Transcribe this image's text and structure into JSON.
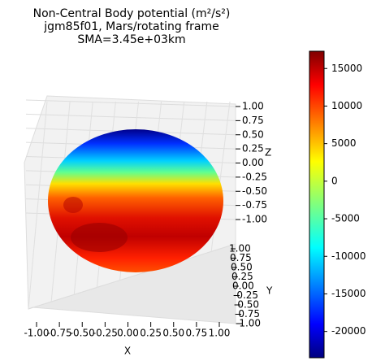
{
  "chart_data": {
    "type": "surface3d",
    "title": [
      "Non-Central Body potential (m²/s²)",
      "jgm85f01, Mars/rotating frame",
      "SMA=3.45e+03km"
    ],
    "xlabel": "X",
    "ylabel": "Y",
    "zlabel": "Z",
    "xlim": [
      -1,
      1
    ],
    "ylim": [
      -1,
      1
    ],
    "zlim": [
      -1,
      1
    ],
    "xticks": [
      {
        "value": -1,
        "label": "-1.00"
      },
      {
        "value": -0.75,
        "label": "-0.75"
      },
      {
        "value": -0.5,
        "label": "-0.50"
      },
      {
        "value": -0.25,
        "label": "-0.25"
      },
      {
        "value": 0,
        "label": "0.00"
      },
      {
        "value": 0.25,
        "label": "0.25"
      },
      {
        "value": 0.5,
        "label": "0.50"
      },
      {
        "value": 0.75,
        "label": "0.75"
      },
      {
        "value": 1,
        "label": "1.00"
      }
    ],
    "yticks": [
      {
        "value": -1,
        "label": "-1.00"
      },
      {
        "value": -0.75,
        "label": "-0.75"
      },
      {
        "value": -0.5,
        "label": "-0.50"
      },
      {
        "value": -0.25,
        "label": "-0.25"
      },
      {
        "value": 0,
        "label": "0.00"
      },
      {
        "value": 0.25,
        "label": "0.25"
      },
      {
        "value": 0.5,
        "label": "0.50"
      },
      {
        "value": 0.75,
        "label": "0.75"
      },
      {
        "value": 1,
        "label": "1.00"
      }
    ],
    "zticks": [
      {
        "value": -1,
        "label": "-1.00"
      },
      {
        "value": -0.75,
        "label": "-0.75"
      },
      {
        "value": -0.5,
        "label": "-0.50"
      },
      {
        "value": -0.25,
        "label": "-0.25"
      },
      {
        "value": 0,
        "label": "0.00"
      },
      {
        "value": 0.25,
        "label": "0.25"
      },
      {
        "value": 0.5,
        "label": "0.50"
      },
      {
        "value": 0.75,
        "label": "0.75"
      },
      {
        "value": 1,
        "label": "1.00"
      }
    ],
    "colormap": "jet",
    "clim": [
      -23500,
      17300
    ],
    "cticks": [
      -20000,
      -15000,
      -10000,
      -5000,
      0,
      5000,
      10000,
      15000
    ],
    "grid": true
  }
}
